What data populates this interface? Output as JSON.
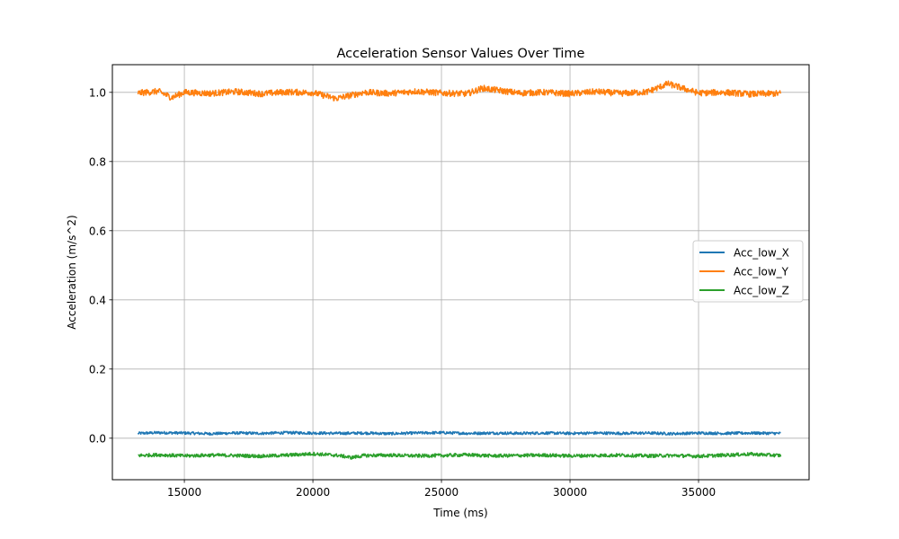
{
  "chart_data": {
    "type": "line",
    "title": "Acceleration Sensor Values Over Time",
    "xlabel": "Time (ms)",
    "ylabel": "Acceleration (m/s^2)",
    "xlim": [
      12200,
      39300
    ],
    "ylim": [
      -0.12,
      1.08
    ],
    "x_ticks": [
      15000,
      20000,
      25000,
      30000,
      35000
    ],
    "x_tick_labels": [
      "15000",
      "20000",
      "25000",
      "30000",
      "35000"
    ],
    "y_ticks": [
      0.0,
      0.2,
      0.4,
      0.6,
      0.8,
      1.0
    ],
    "y_tick_labels": [
      "0.0",
      "0.2",
      "0.4",
      "0.6",
      "0.8",
      "1.0"
    ],
    "grid": true,
    "legend_position": "center-right",
    "x_range": [
      13200,
      38200
    ],
    "series": [
      {
        "name": "Acc_low_X",
        "color": "#1f77b4",
        "values": [
          [
            13200,
            0.014
          ],
          [
            14000,
            0.016
          ],
          [
            15000,
            0.015
          ],
          [
            16000,
            0.013
          ],
          [
            17000,
            0.015
          ],
          [
            18000,
            0.014
          ],
          [
            19000,
            0.016
          ],
          [
            20000,
            0.015
          ],
          [
            21000,
            0.014
          ],
          [
            22000,
            0.015
          ],
          [
            23000,
            0.013
          ],
          [
            24000,
            0.015
          ],
          [
            25000,
            0.016
          ],
          [
            26000,
            0.014
          ],
          [
            27000,
            0.015
          ],
          [
            28000,
            0.014
          ],
          [
            29000,
            0.015
          ],
          [
            30000,
            0.014
          ],
          [
            31000,
            0.015
          ],
          [
            32000,
            0.014
          ],
          [
            33000,
            0.015
          ],
          [
            34000,
            0.013
          ],
          [
            35000,
            0.015
          ],
          [
            36000,
            0.014
          ],
          [
            37000,
            0.015
          ],
          [
            38200,
            0.014
          ]
        ]
      },
      {
        "name": "Acc_low_Y",
        "color": "#ff7f0e",
        "values": [
          [
            13200,
            0.998
          ],
          [
            14000,
            1.003
          ],
          [
            14500,
            0.985
          ],
          [
            15000,
            1.0
          ],
          [
            16000,
            0.997
          ],
          [
            17000,
            1.002
          ],
          [
            18000,
            0.996
          ],
          [
            19000,
            1.001
          ],
          [
            20000,
            0.999
          ],
          [
            20900,
            0.982
          ],
          [
            22000,
            1.0
          ],
          [
            23000,
            0.997
          ],
          [
            24000,
            1.003
          ],
          [
            25000,
            0.998
          ],
          [
            26000,
            0.996
          ],
          [
            26600,
            1.012
          ],
          [
            28000,
            0.998
          ],
          [
            29000,
            1.0
          ],
          [
            30000,
            0.996
          ],
          [
            31000,
            1.002
          ],
          [
            32000,
            0.997
          ],
          [
            33000,
            1.001
          ],
          [
            33800,
            1.025
          ],
          [
            35000,
            0.998
          ],
          [
            36000,
            1.0
          ],
          [
            37000,
            0.995
          ],
          [
            38200,
            0.997
          ]
        ]
      },
      {
        "name": "Acc_low_Z",
        "color": "#2ca02c",
        "values": [
          [
            13200,
            -0.05
          ],
          [
            14000,
            -0.048
          ],
          [
            15000,
            -0.051
          ],
          [
            16000,
            -0.049
          ],
          [
            17000,
            -0.05
          ],
          [
            18000,
            -0.052
          ],
          [
            19000,
            -0.049
          ],
          [
            20000,
            -0.045
          ],
          [
            21000,
            -0.05
          ],
          [
            21500,
            -0.056
          ],
          [
            22000,
            -0.05
          ],
          [
            23000,
            -0.049
          ],
          [
            24000,
            -0.051
          ],
          [
            25000,
            -0.05
          ],
          [
            26000,
            -0.048
          ],
          [
            27000,
            -0.051
          ],
          [
            28000,
            -0.05
          ],
          [
            29000,
            -0.049
          ],
          [
            30000,
            -0.051
          ],
          [
            31000,
            -0.05
          ],
          [
            32000,
            -0.049
          ],
          [
            33000,
            -0.051
          ],
          [
            34000,
            -0.05
          ],
          [
            35000,
            -0.052
          ],
          [
            36000,
            -0.049
          ],
          [
            37000,
            -0.046
          ],
          [
            38200,
            -0.05
          ]
        ]
      }
    ]
  }
}
